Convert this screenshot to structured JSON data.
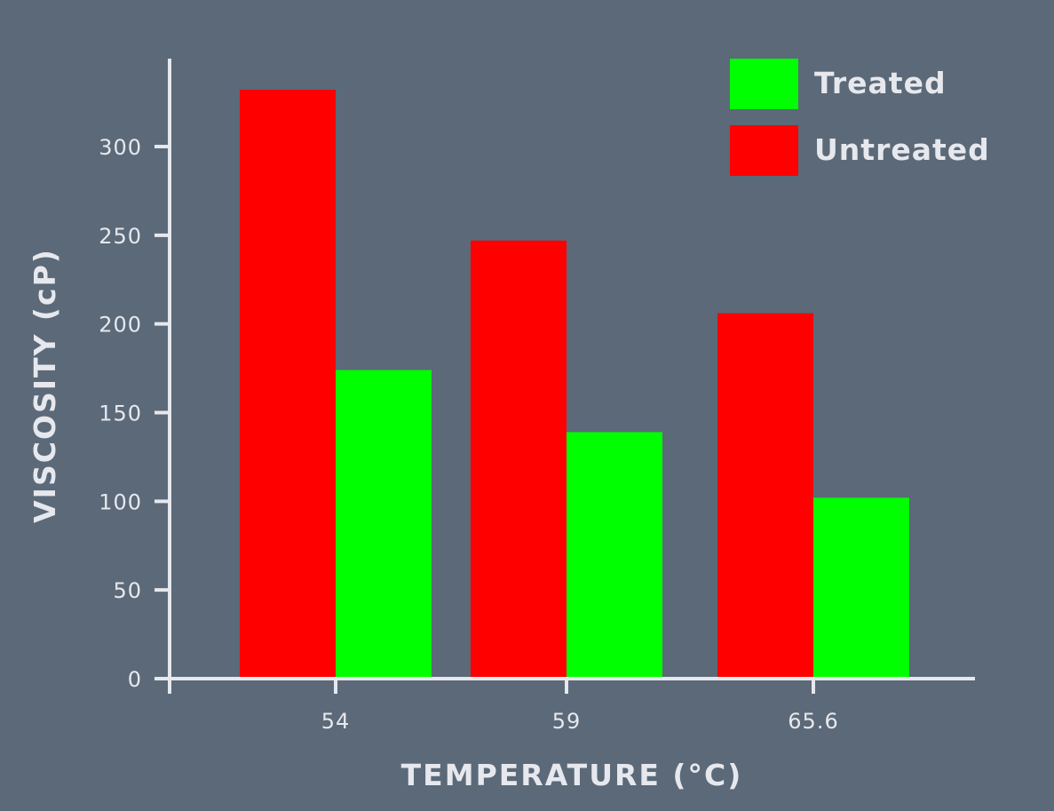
{
  "chart_data": {
    "type": "bar",
    "title": "",
    "xlabel": "TEMPERATURE (°C)",
    "ylabel": "VISCOSITY (cP)",
    "categories": [
      "54",
      "59",
      "65.6"
    ],
    "series": [
      {
        "name": "Untreated",
        "color": "#ff0000",
        "values": [
          332,
          247,
          206
        ]
      },
      {
        "name": "Treated",
        "color": "#00ff00",
        "values": [
          174,
          139,
          102
        ]
      }
    ],
    "ylim": [
      0,
      350
    ],
    "yticks": [
      0,
      50,
      100,
      150,
      200,
      250,
      300
    ],
    "ytick_labels": [
      "0",
      "50",
      "100",
      "150",
      "200",
      "250",
      "300"
    ],
    "grid": false,
    "legend_position": "top-right",
    "legend_order": [
      "Treated",
      "Untreated"
    ],
    "background_color": "#5b6978",
    "axis_color": "#e6e8ee"
  }
}
